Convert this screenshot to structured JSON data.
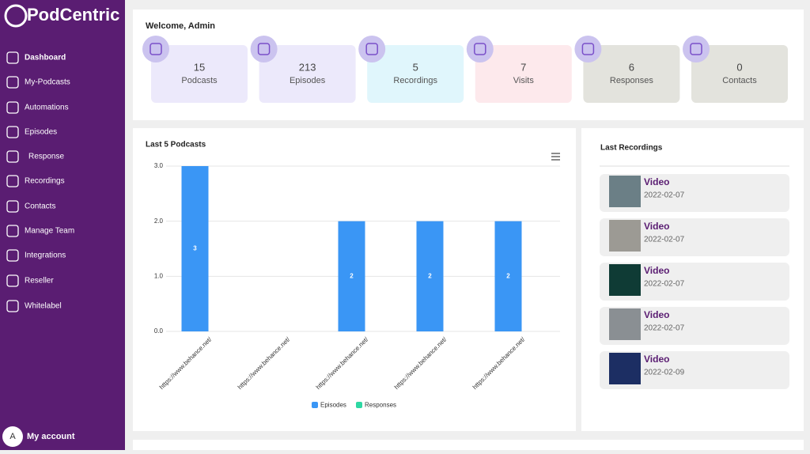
{
  "sidebar": {
    "logo": "PodCentric",
    "menu": [
      "Dashboard",
      "My-Podcasts",
      "Automations",
      "Episodes",
      "Response",
      "Recordings",
      "Contacts",
      "Manage Team",
      "Integrations",
      "Reseller",
      "Whitelabel"
    ],
    "avatar": "A",
    "account": "My account"
  },
  "header": {
    "title": "Welcome, Admin"
  },
  "stats": [
    {
      "value": 15,
      "label": "Podcasts",
      "color": "#ece9fb"
    },
    {
      "value": 213,
      "label": "Episodes",
      "color": "#ece9fb"
    },
    {
      "value": 5,
      "label": "Recordings",
      "color": "#e0f6fc"
    },
    {
      "value": 7,
      "label": "Visits",
      "color": "#fde9ec"
    },
    {
      "value": 6,
      "label": "Responses",
      "color": "#e3e3dd"
    },
    {
      "value": 0,
      "label": "Contacts",
      "color": "#e3e3dd"
    }
  ],
  "chart_data": {
    "type": "bar",
    "title": "Last 5 Podcasts",
    "categories": [
      "https://www.behance.net/",
      "https://www.behance.net/",
      "https://www.behance.net/",
      "https://www.behance.net/",
      "https://www.behance.net/"
    ],
    "series": [
      {
        "name": "Episodes",
        "color": "#3a96f5",
        "values": [
          3,
          0,
          2,
          2,
          2
        ]
      },
      {
        "name": "Responses",
        "color": "#2ed8a3",
        "values": [
          0,
          0,
          0,
          0,
          0
        ]
      }
    ],
    "ylim": [
      0,
      3
    ],
    "yticks": [
      {
        "value": 0,
        "label": "0.0"
      },
      {
        "value": 1,
        "label": "1.0"
      },
      {
        "value": 2,
        "label": "2.0"
      },
      {
        "value": 3,
        "label": "3.0"
      }
    ],
    "grid": true,
    "legend": "bottom"
  },
  "recordings": {
    "title": "Last Recordings",
    "items": [
      {
        "title": "Video",
        "date": "2022-02-07"
      },
      {
        "title": "Video",
        "date": "2022-02-07"
      },
      {
        "title": "Video",
        "date": "2022-02-07"
      },
      {
        "title": "Video",
        "date": "2022-02-07"
      },
      {
        "title": "Video",
        "date": "2022-02-09"
      }
    ]
  }
}
